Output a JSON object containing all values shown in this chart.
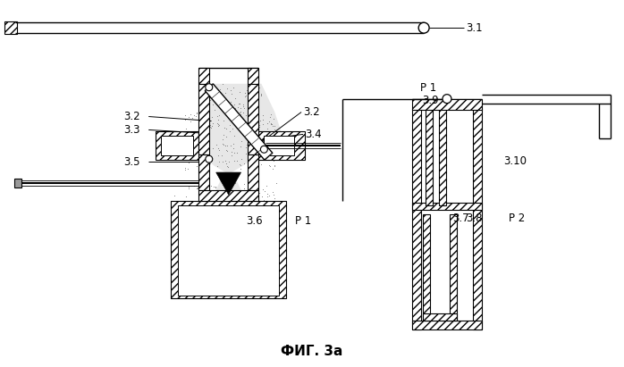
{
  "title": "ФИГ. 3а",
  "bg_color": "#ffffff",
  "fig_width": 6.98,
  "fig_height": 4.11,
  "dpi": 100
}
